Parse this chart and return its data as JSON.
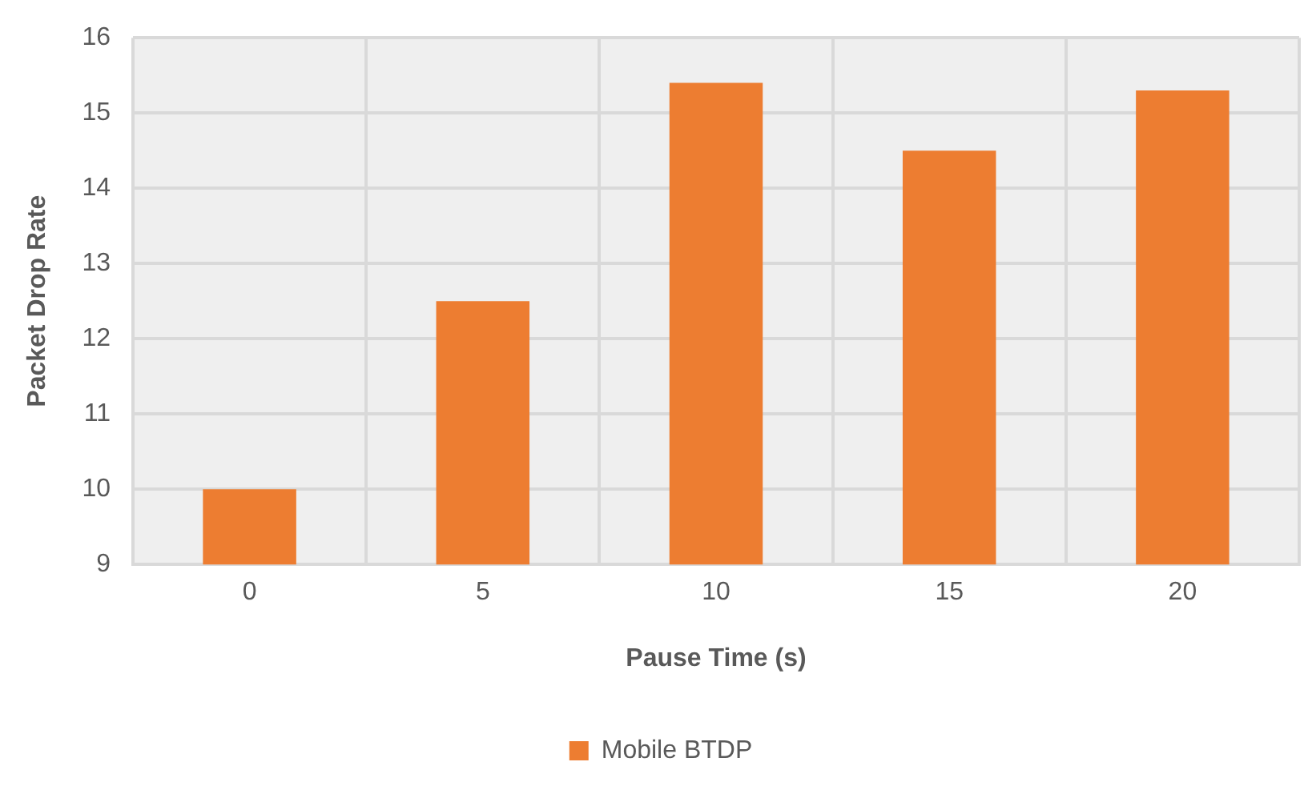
{
  "chart_data": {
    "type": "bar",
    "xlabel": "Pause Time (s)",
    "ylabel": "Packet Drop Rate",
    "categories": [
      "0",
      "5",
      "10",
      "15",
      "20"
    ],
    "series": [
      {
        "name": "Mobile BTDP",
        "color": "#ed7d31",
        "values": [
          10,
          12.5,
          15.4,
          14.5,
          15.3
        ]
      }
    ],
    "ylim": [
      9,
      16
    ],
    "yticks": [
      9,
      10,
      11,
      12,
      13,
      14,
      15,
      16
    ],
    "grid": true,
    "legend": "bottom"
  }
}
